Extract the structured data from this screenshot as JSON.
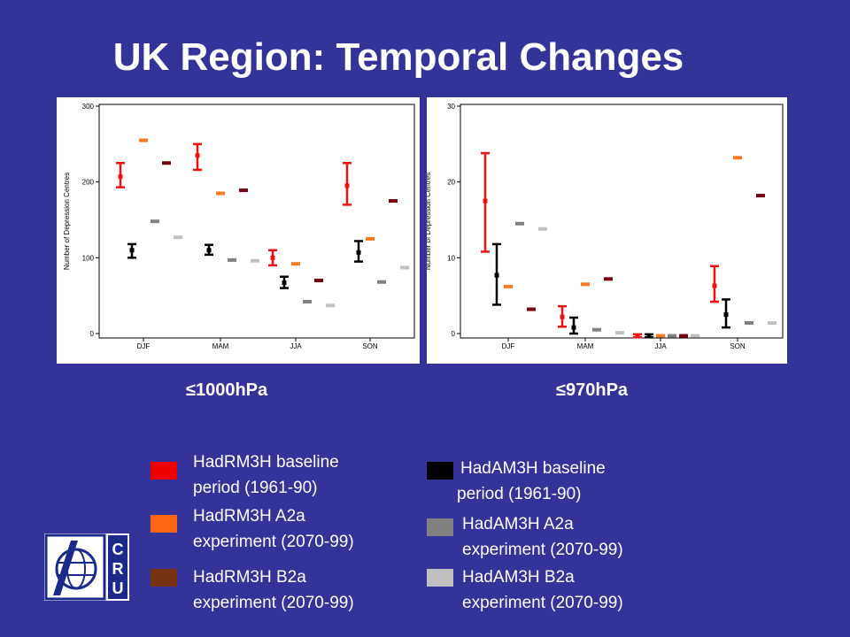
{
  "slide": {
    "title": "UK Region: Temporal Changes",
    "background": "#333399"
  },
  "logo": {
    "letters": "CRU",
    "icon": "cru-globe-logo"
  },
  "chart_data": [
    {
      "type": "scatter",
      "title": "",
      "xlabel": "",
      "ylabel": "Number of Depression Centres",
      "ylim": [
        0,
        300
      ],
      "yticks": [
        "0",
        "100",
        "200",
        "300"
      ],
      "categories": [
        "DJF",
        "MAM",
        "JJA",
        "SON"
      ],
      "threshold_label": "≤1000hPa",
      "series": [
        {
          "name": "HadRM3H baseline period (1961-90)",
          "color": "#ee1111",
          "values": [
            207,
            235,
            100,
            195
          ],
          "err": [
            [
              193,
              225
            ],
            [
              216,
              250
            ],
            [
              90,
              110
            ],
            [
              170,
              225
            ]
          ]
        },
        {
          "name": "HadRM3H A2a experiment (2070-99)",
          "color": "#ff7722",
          "values": [
            255,
            185,
            92,
            125
          ]
        },
        {
          "name": "HadRM3H B2a experiment (2070-99)",
          "color": "#770011",
          "values": [
            225,
            189,
            70,
            175
          ]
        },
        {
          "name": "HadAM3H baseline period (1961-90)",
          "color": "#000000",
          "values": [
            110,
            110,
            67,
            107
          ],
          "err": [
            [
              100,
              118
            ],
            [
              104,
              117
            ],
            [
              60,
              75
            ],
            [
              95,
              122
            ]
          ]
        },
        {
          "name": "HadAM3H A2a experiment (2070-99)",
          "color": "#808080",
          "values": [
            148,
            97,
            42,
            68
          ]
        },
        {
          "name": "HadAM3H B2a experiment (2070-99)",
          "color": "#c0c0c0",
          "values": [
            127,
            96,
            37,
            87
          ]
        }
      ]
    },
    {
      "type": "scatter",
      "title": "",
      "xlabel": "",
      "ylabel": "Number of Depression Centres",
      "ylim": [
        0,
        30
      ],
      "yticks": [
        "0",
        "10",
        "20",
        "30"
      ],
      "categories": [
        "DJF",
        "MAM",
        "JJA",
        "SON"
      ],
      "threshold_label": "≤970hPa",
      "series": [
        {
          "name": "HadRM3H baseline period (1961-90)",
          "color": "#ee1111",
          "values": [
            17.5,
            2.2,
            -0.3,
            6.3
          ],
          "err": [
            [
              10.8,
              23.8
            ],
            [
              0.9,
              3.6
            ],
            [
              -0.5,
              -0.1
            ],
            [
              4.2,
              8.9
            ]
          ]
        },
        {
          "name": "HadRM3H A2a experiment (2070-99)",
          "color": "#ff7722",
          "values": [
            6.2,
            6.5,
            -0.3,
            23.2
          ]
        },
        {
          "name": "HadRM3H B2a experiment (2070-99)",
          "color": "#770011",
          "values": [
            3.2,
            7.2,
            -0.3,
            18.2
          ]
        },
        {
          "name": "HadAM3H baseline period (1961-90)",
          "color": "#000000",
          "values": [
            7.7,
            0.8,
            -0.3,
            2.5
          ],
          "err": [
            [
              3.8,
              11.8
            ],
            [
              0.0,
              2.1
            ],
            [
              -0.5,
              -0.1
            ],
            [
              0.8,
              4.5
            ]
          ]
        },
        {
          "name": "HadAM3H A2a experiment (2070-99)",
          "color": "#808080",
          "values": [
            14.5,
            0.5,
            -0.3,
            1.4
          ]
        },
        {
          "name": "HadAM3H B2a experiment (2070-99)",
          "color": "#c0c0c0",
          "values": [
            13.8,
            0.1,
            -0.3,
            1.4
          ]
        }
      ]
    }
  ],
  "legend": [
    {
      "line1": "HadRM3H baseline",
      "line2": "period (1961-90)",
      "color": "#ee0000"
    },
    {
      "line1": "HadRM3H A2a",
      "line2": "experiment (2070-99)",
      "color": "#ff6611"
    },
    {
      "line1": "HadRM3H B2a",
      "line2": "experiment (2070-99)",
      "color": "#773311"
    },
    {
      "line1": "HadAM3H baseline",
      "line2": "period (1961-90)",
      "color": "#000000"
    },
    {
      "line1": "HadAM3H A2a",
      "line2": "experiment (2070-99)",
      "color": "#808080"
    },
    {
      "line1": "HadAM3H B2a",
      "line2": "experiment (2070-99)",
      "color": "#c0c0c0"
    }
  ]
}
